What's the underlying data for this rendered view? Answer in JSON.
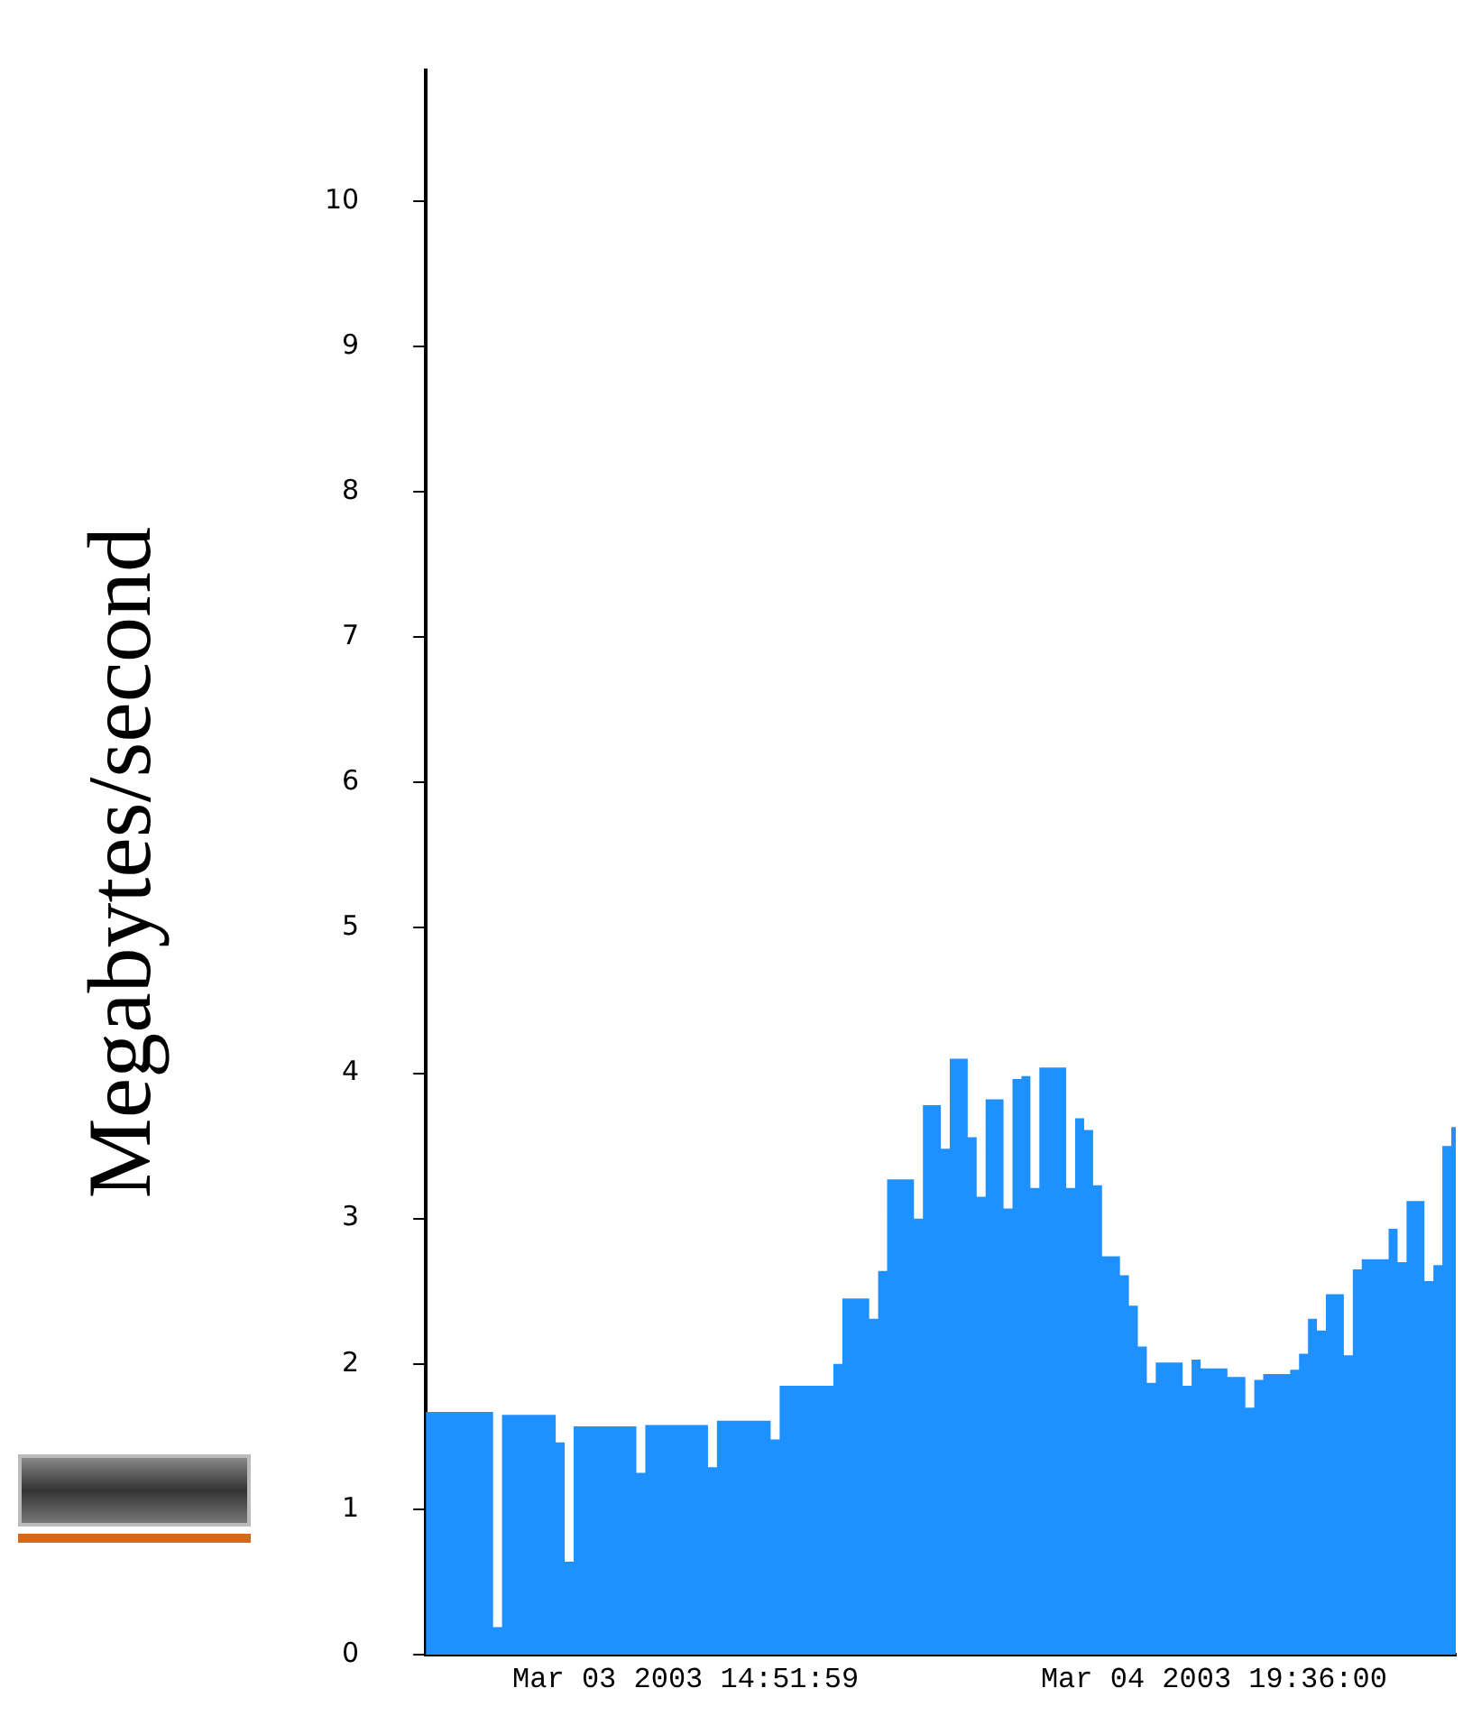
{
  "chart_data": {
    "type": "area",
    "ylabel": "Megabytes/second",
    "color": "#1e90ff",
    "categories": [
      null,
      null,
      null,
      null,
      null,
      null,
      null,
      null,
      null,
      null,
      null,
      null,
      null,
      null,
      null,
      null,
      null,
      null,
      null,
      null,
      null,
      null,
      null,
      null,
      null,
      null,
      null,
      null,
      null,
      "Mar 03 2003 14:51:59",
      null,
      null,
      null,
      null,
      null,
      null,
      null,
      null,
      null,
      null,
      null,
      null,
      null,
      null,
      null,
      null,
      null,
      null,
      null,
      null,
      null,
      null,
      null,
      null,
      null,
      null,
      null,
      null,
      null,
      null,
      null,
      null,
      null,
      null,
      null,
      null,
      null,
      null,
      null,
      null,
      null,
      null,
      null,
      null,
      null,
      null,
      null,
      null,
      null,
      null,
      null,
      null,
      null,
      null,
      null,
      null,
      null,
      null,
      "Mar 04 2003 19:36:00",
      null,
      null,
      null,
      null,
      null,
      null,
      null,
      null,
      null,
      null,
      null,
      null,
      null,
      null,
      null,
      null,
      null,
      null,
      null,
      null,
      null,
      null,
      null,
      null,
      null,
      null,
      null
    ],
    "values": [
      1.67,
      1.67,
      1.67,
      1.67,
      1.67,
      1.67,
      1.67,
      1.67,
      0.19,
      1.65,
      1.65,
      1.65,
      1.65,
      1.65,
      1.65,
      1.46,
      0.64,
      1.57,
      1.57,
      1.57,
      1.57,
      1.57,
      1.57,
      1.57,
      1.25,
      1.58,
      1.58,
      1.58,
      1.58,
      1.58,
      1.58,
      1.58,
      1.29,
      1.61,
      1.61,
      1.61,
      1.61,
      1.61,
      1.61,
      1.48,
      1.85,
      1.85,
      1.85,
      1.85,
      1.85,
      1.85,
      2.0,
      2.45,
      2.45,
      2.45,
      2.31,
      2.64,
      3.27,
      3.27,
      3.27,
      3.0,
      3.78,
      3.78,
      3.48,
      4.1,
      4.1,
      3.56,
      3.15,
      3.82,
      3.82,
      3.07,
      3.96,
      3.98,
      3.21,
      4.04,
      4.04,
      4.04,
      3.21,
      3.69,
      3.61,
      3.23,
      2.74,
      2.74,
      2.61,
      2.4,
      2.12,
      1.87,
      2.01,
      2.01,
      2.01,
      1.85,
      2.03,
      1.97,
      1.97,
      1.97,
      1.91,
      1.91,
      1.7,
      1.89,
      1.93,
      1.93,
      1.93,
      1.96,
      2.07,
      2.31,
      2.23,
      2.48,
      2.48,
      2.06,
      2.65,
      2.72,
      2.72,
      2.72,
      2.93,
      2.7,
      3.12,
      3.12,
      2.57,
      2.68,
      3.5,
      3.63
    ],
    "ylim": [
      0,
      10.9
    ],
    "yticks": [
      0,
      1,
      2,
      3,
      4,
      5,
      6,
      7,
      8,
      9,
      10
    ]
  }
}
